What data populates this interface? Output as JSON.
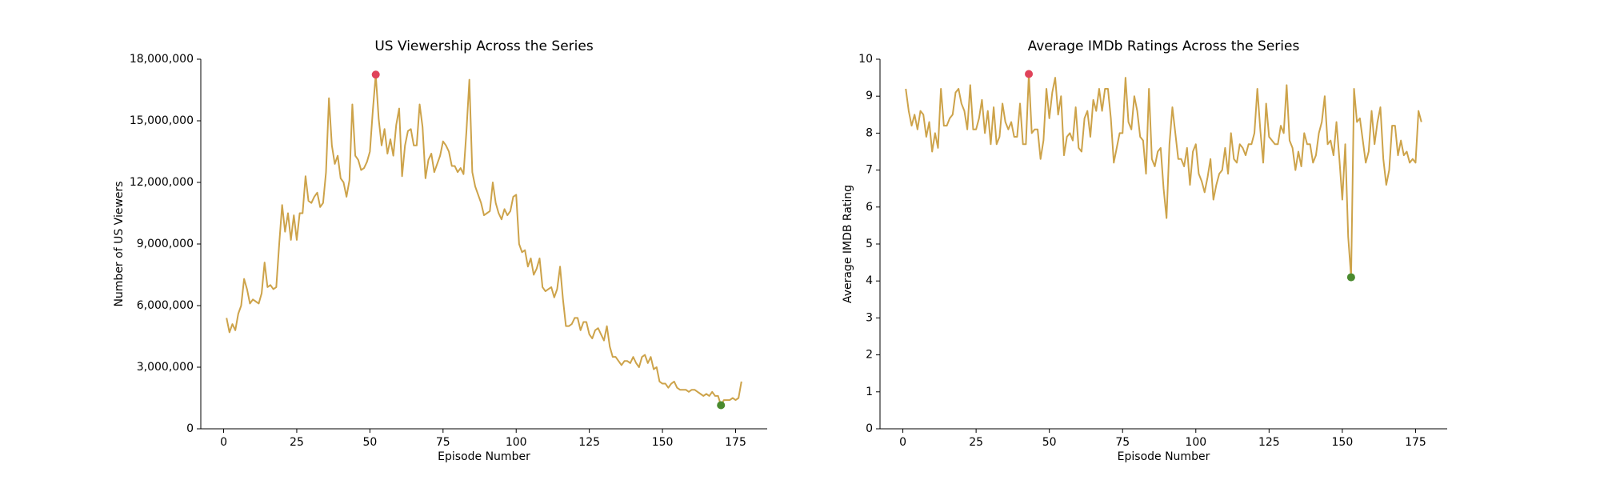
{
  "chart_data": [
    {
      "type": "line",
      "title": "US Viewership Across the Series",
      "xlabel": "Episode Number",
      "ylabel": "Number of US Viewers",
      "color": "#cda34a",
      "x": [
        1,
        2,
        3,
        4,
        5,
        6,
        7,
        8,
        9,
        10,
        11,
        12,
        13,
        14,
        15,
        16,
        17,
        18,
        19,
        20,
        21,
        22,
        23,
        24,
        25,
        26,
        27,
        28,
        29,
        30,
        31,
        32,
        33,
        34,
        35,
        36,
        37,
        38,
        39,
        40,
        41,
        42,
        43,
        44,
        45,
        46,
        47,
        48,
        49,
        50,
        51,
        52,
        53,
        54,
        55,
        56,
        57,
        58,
        59,
        60,
        61,
        62,
        63,
        64,
        65,
        66,
        67,
        68,
        69,
        70,
        71,
        72,
        73,
        74,
        75,
        76,
        77,
        78,
        79,
        80,
        81,
        82,
        83,
        84,
        85,
        86,
        87,
        88,
        89,
        90,
        91,
        92,
        93,
        94,
        95,
        96,
        97,
        98,
        99,
        100,
        101,
        102,
        103,
        104,
        105,
        106,
        107,
        108,
        109,
        110,
        111,
        112,
        113,
        114,
        115,
        116,
        117,
        118,
        119,
        120,
        121,
        122,
        123,
        124,
        125,
        126,
        127,
        128,
        129,
        130,
        131,
        132,
        133,
        134,
        135,
        136,
        137,
        138,
        139,
        140,
        141,
        142,
        143,
        144,
        145,
        146,
        147,
        148,
        149,
        150,
        151,
        152,
        153,
        154,
        155,
        156,
        157,
        158,
        159,
        160,
        161,
        162,
        163,
        164,
        165,
        166,
        167,
        168,
        169,
        170,
        171,
        172,
        173,
        174,
        175,
        176,
        177
      ],
      "values": [
        5400000,
        4700000,
        5100000,
        4800000,
        5600000,
        6000000,
        7300000,
        6800000,
        6100000,
        6300000,
        6200000,
        6100000,
        6600000,
        8100000,
        6900000,
        7000000,
        6800000,
        6900000,
        9000000,
        10900000,
        9600000,
        10500000,
        9200000,
        10400000,
        9200000,
        10500000,
        10500000,
        12300000,
        11100000,
        11000000,
        11300000,
        11500000,
        10800000,
        11000000,
        12500000,
        16100000,
        13800000,
        12900000,
        13300000,
        12200000,
        12000000,
        11300000,
        12100000,
        15800000,
        13300000,
        13100000,
        12600000,
        12700000,
        13000000,
        13500000,
        15500000,
        17250000,
        15100000,
        13800000,
        14600000,
        13400000,
        14100000,
        13300000,
        14800000,
        15600000,
        12300000,
        13800000,
        14500000,
        14600000,
        13800000,
        13800000,
        15800000,
        14700000,
        12200000,
        13100000,
        13400000,
        12500000,
        12900000,
        13300000,
        14000000,
        13800000,
        13500000,
        12800000,
        12800000,
        12500000,
        12700000,
        12400000,
        14500000,
        17000000,
        12500000,
        11800000,
        11400000,
        11000000,
        10400000,
        10500000,
        10600000,
        12000000,
        11000000,
        10500000,
        10200000,
        10700000,
        10400000,
        10600000,
        11300000,
        11400000,
        9000000,
        8600000,
        8700000,
        7900000,
        8300000,
        7500000,
        7800000,
        8300000,
        6900000,
        6700000,
        6800000,
        6900000,
        6400000,
        6800000,
        7900000,
        6300000,
        5000000,
        5000000,
        5100000,
        5400000,
        5400000,
        4800000,
        5200000,
        5200000,
        4600000,
        4400000,
        4800000,
        4900000,
        4600000,
        4300000,
        5000000,
        4000000,
        3500000,
        3500000,
        3300000,
        3100000,
        3300000,
        3300000,
        3200000,
        3500000,
        3200000,
        3000000,
        3500000,
        3600000,
        3200000,
        3500000,
        2900000,
        3000000,
        2300000,
        2200000,
        2200000,
        2000000,
        2200000,
        2300000,
        2000000,
        1900000,
        1900000,
        1900000,
        1800000,
        1900000,
        1900000,
        1800000,
        1700000,
        1600000,
        1700000,
        1600000,
        1800000,
        1600000,
        1600000,
        1150000,
        1400000,
        1400000,
        1400000,
        1500000,
        1400000,
        1500000,
        2300000
      ],
      "max_point": {
        "x": 52,
        "y": 17250000,
        "color": "#e0435a"
      },
      "min_point": {
        "x": 170,
        "y": 1150000,
        "color": "#4a8a2e"
      },
      "xlim": [
        -7.8,
        185.8
      ],
      "xticks": [
        0,
        25,
        50,
        75,
        100,
        125,
        150,
        175
      ],
      "ylim": [
        0,
        18000000
      ],
      "yticks": [
        0,
        {
          "value": 3000000,
          "label": "3,000,000"
        },
        {
          "value": 6000000,
          "label": "6,000,000"
        },
        {
          "value": 9000000,
          "label": "9,000,000"
        },
        {
          "value": 12000000,
          "label": "12,000,000"
        },
        {
          "value": 15000000,
          "label": "15,000,000"
        },
        {
          "value": 18000000,
          "label": "18,000,000"
        }
      ]
    },
    {
      "type": "line",
      "title": "Average IMDb Ratings Across the Series",
      "xlabel": "Episode Number",
      "ylabel": "Average IMDB Rating",
      "color": "#cda34a",
      "x": [
        1,
        2,
        3,
        4,
        5,
        6,
        7,
        8,
        9,
        10,
        11,
        12,
        13,
        14,
        15,
        16,
        17,
        18,
        19,
        20,
        21,
        22,
        23,
        24,
        25,
        26,
        27,
        28,
        29,
        30,
        31,
        32,
        33,
        34,
        35,
        36,
        37,
        38,
        39,
        40,
        41,
        42,
        43,
        44,
        45,
        46,
        47,
        48,
        49,
        50,
        51,
        52,
        53,
        54,
        55,
        56,
        57,
        58,
        59,
        60,
        61,
        62,
        63,
        64,
        65,
        66,
        67,
        68,
        69,
        70,
        71,
        72,
        73,
        74,
        75,
        76,
        77,
        78,
        79,
        80,
        81,
        82,
        83,
        84,
        85,
        86,
        87,
        88,
        89,
        90,
        91,
        92,
        93,
        94,
        95,
        96,
        97,
        98,
        99,
        100,
        101,
        102,
        103,
        104,
        105,
        106,
        107,
        108,
        109,
        110,
        111,
        112,
        113,
        114,
        115,
        116,
        117,
        118,
        119,
        120,
        121,
        122,
        123,
        124,
        125,
        126,
        127,
        128,
        129,
        130,
        131,
        132,
        133,
        134,
        135,
        136,
        137,
        138,
        139,
        140,
        141,
        142,
        143,
        144,
        145,
        146,
        147,
        148,
        149,
        150,
        151,
        152,
        153,
        154,
        155,
        156,
        157,
        158,
        159,
        160,
        161,
        162,
        163,
        164,
        165,
        166,
        167,
        168,
        169,
        170,
        171,
        172,
        173,
        174,
        175,
        176,
        177
      ],
      "values": [
        9.2,
        8.6,
        8.2,
        8.5,
        8.1,
        8.6,
        8.5,
        7.9,
        8.3,
        7.5,
        8.0,
        7.6,
        9.2,
        8.2,
        8.2,
        8.4,
        8.5,
        9.1,
        9.2,
        8.8,
        8.6,
        8.1,
        9.3,
        8.1,
        8.1,
        8.4,
        8.9,
        8.0,
        8.6,
        7.7,
        8.7,
        7.7,
        7.9,
        8.8,
        8.3,
        8.1,
        8.3,
        7.9,
        7.9,
        8.8,
        7.7,
        7.7,
        9.6,
        8.0,
        8.1,
        8.1,
        7.3,
        7.8,
        9.2,
        8.4,
        9.1,
        9.5,
        8.5,
        9.0,
        7.4,
        7.9,
        8.0,
        7.8,
        8.7,
        7.6,
        7.5,
        8.4,
        8.6,
        7.9,
        8.9,
        8.6,
        9.2,
        8.6,
        9.2,
        9.2,
        8.4,
        7.2,
        7.6,
        8.0,
        8.0,
        9.5,
        8.3,
        8.1,
        9.0,
        8.6,
        7.9,
        7.8,
        6.9,
        9.2,
        7.3,
        7.1,
        7.5,
        7.6,
        6.5,
        5.7,
        7.7,
        8.7,
        8.0,
        7.3,
        7.3,
        7.1,
        7.6,
        6.6,
        7.5,
        7.7,
        6.9,
        6.7,
        6.4,
        6.8,
        7.3,
        6.2,
        6.6,
        6.9,
        7.0,
        7.6,
        6.9,
        8.0,
        7.3,
        7.2,
        7.7,
        7.6,
        7.4,
        7.7,
        7.7,
        8.0,
        9.2,
        8.1,
        7.2,
        8.8,
        7.9,
        7.8,
        7.7,
        7.7,
        8.2,
        8.0,
        9.3,
        7.8,
        7.6,
        7.0,
        7.5,
        7.1,
        8.0,
        7.7,
        7.7,
        7.2,
        7.4,
        8.0,
        8.3,
        9.0,
        7.7,
        7.8,
        7.4,
        8.3,
        7.3,
        6.2,
        7.7,
        5.2,
        4.1,
        9.2,
        8.3,
        8.4,
        7.8,
        7.2,
        7.5,
        8.6,
        7.7,
        8.3,
        8.7,
        7.3,
        6.6,
        7.0,
        8.2,
        8.2,
        7.4,
        7.8,
        7.4,
        7.5,
        7.2,
        7.3,
        7.2,
        8.6,
        8.3
      ],
      "max_point": {
        "x": 43,
        "y": 9.6,
        "color": "#e0435a"
      },
      "min_point": {
        "x": 153,
        "y": 4.1,
        "color": "#4a8a2e"
      },
      "xlim": [
        -7.8,
        185.8
      ],
      "xticks": [
        0,
        25,
        50,
        75,
        100,
        125,
        150,
        175
      ],
      "ylim": [
        0,
        10
      ],
      "yticks": [
        0,
        1,
        2,
        3,
        4,
        5,
        6,
        7,
        8,
        9,
        10
      ]
    }
  ]
}
